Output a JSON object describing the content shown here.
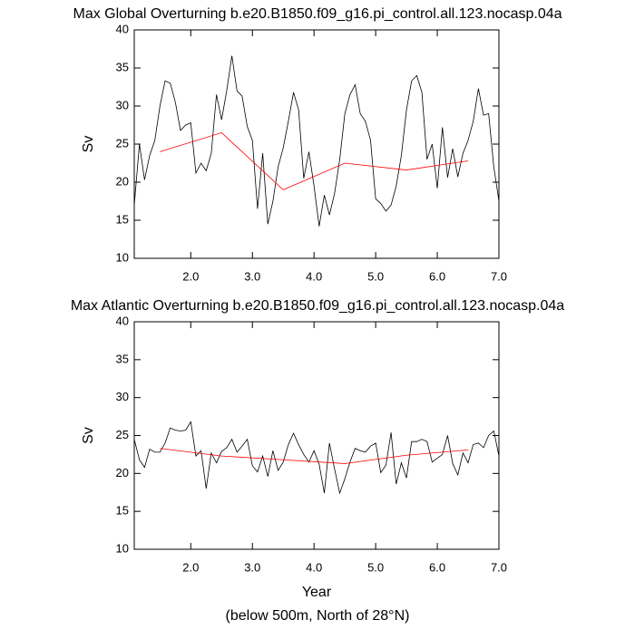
{
  "chart_data": [
    {
      "type": "line",
      "title": "Max Global Overturning b.e20.B1850.f09_g16.pi_control.all.123.nocasp.04a",
      "ylabel": "Sv",
      "xlim": [
        1.083,
        7
      ],
      "ylim": [
        10,
        40
      ],
      "xticks": [
        {
          "value": 2,
          "label": "2.0"
        },
        {
          "value": 3,
          "label": "3.0"
        },
        {
          "value": 4,
          "label": "4.0"
        },
        {
          "value": 5,
          "label": "5.0"
        },
        {
          "value": 6,
          "label": "6.0"
        },
        {
          "value": 7,
          "label": "7.0"
        }
      ],
      "yticks": [
        10,
        15,
        20,
        25,
        30,
        35,
        40
      ],
      "series": [
        {
          "color": "#000000",
          "x": [
            1.083,
            1.167,
            1.25,
            1.333,
            1.417,
            1.5,
            1.583,
            1.667,
            1.75,
            1.833,
            1.917,
            2,
            2.083,
            2.167,
            2.25,
            2.333,
            2.417,
            2.5,
            2.583,
            2.667,
            2.75,
            2.833,
            2.917,
            3,
            3.083,
            3.167,
            3.25,
            3.333,
            3.417,
            3.5,
            3.583,
            3.667,
            3.75,
            3.833,
            3.917,
            4,
            4.083,
            4.167,
            4.25,
            4.333,
            4.417,
            4.5,
            4.583,
            4.667,
            4.75,
            4.833,
            4.917,
            5,
            5.083,
            5.167,
            5.25,
            5.333,
            5.417,
            5.5,
            5.583,
            5.667,
            5.75,
            5.833,
            5.917,
            6,
            6.083,
            6.167,
            6.25,
            6.333,
            6.417,
            6.5,
            6.583,
            6.667,
            6.75,
            6.833,
            6.917,
            7
          ],
          "values": [
            17,
            25,
            20.3,
            23.5,
            25.5,
            30,
            33.3,
            33,
            30.5,
            26.8,
            27.5,
            27.8,
            21.2,
            22.5,
            21.5,
            23.8,
            31.5,
            28.2,
            32,
            36.6,
            32,
            31.3,
            27.3,
            25.5,
            16.5,
            23.8,
            14.5,
            17.5,
            22,
            24.5,
            28,
            31.8,
            29.5,
            20.5,
            24,
            19.5,
            14.2,
            18.3,
            15.7,
            18.5,
            23,
            29,
            31.5,
            32.8,
            29,
            28,
            25.5,
            17.8,
            17.2,
            16.2,
            17,
            19.5,
            23.5,
            29.5,
            33.3,
            34,
            31.8,
            23,
            25,
            19.2,
            27.2,
            20.6,
            24.4,
            20.7,
            23.8,
            25.5,
            28,
            32.3,
            28.8,
            29,
            22,
            17.5
          ]
        },
        {
          "color": "#ff0000",
          "x": [
            1.5,
            2.5,
            3.5,
            4.5,
            5.5,
            6.5
          ],
          "values": [
            24,
            26.5,
            19,
            22.5,
            21.6,
            22.8
          ]
        }
      ]
    },
    {
      "type": "line",
      "title": "Max Atlantic Overturning b.e20.B1850.f09_g16.pi_control.all.123.nocasp.04a",
      "ylabel": "Sv",
      "xlabel": "Year",
      "xlim": [
        1.083,
        7
      ],
      "ylim": [
        10,
        40
      ],
      "xticks": [
        {
          "value": 2,
          "label": "2.0"
        },
        {
          "value": 3,
          "label": "3.0"
        },
        {
          "value": 4,
          "label": "4.0"
        },
        {
          "value": 5,
          "label": "5.0"
        },
        {
          "value": 6,
          "label": "6.0"
        },
        {
          "value": 7,
          "label": "7.0"
        }
      ],
      "yticks": [
        10,
        15,
        20,
        25,
        30,
        35,
        40
      ],
      "series": [
        {
          "color": "#000000",
          "x": [
            1.083,
            1.167,
            1.25,
            1.333,
            1.417,
            1.5,
            1.583,
            1.667,
            1.75,
            1.833,
            1.917,
            2,
            2.083,
            2.167,
            2.25,
            2.333,
            2.417,
            2.5,
            2.583,
            2.667,
            2.75,
            2.833,
            2.917,
            3,
            3.083,
            3.167,
            3.25,
            3.333,
            3.417,
            3.5,
            3.583,
            3.667,
            3.75,
            3.833,
            3.917,
            4,
            4.083,
            4.167,
            4.25,
            4.333,
            4.417,
            4.5,
            4.583,
            4.667,
            4.75,
            4.833,
            4.917,
            5,
            5.083,
            5.167,
            5.25,
            5.333,
            5.417,
            5.5,
            5.583,
            5.667,
            5.75,
            5.833,
            5.917,
            6,
            6.083,
            6.167,
            6.25,
            6.333,
            6.417,
            6.5,
            6.583,
            6.667,
            6.75,
            6.833,
            6.917,
            7
          ],
          "values": [
            24.5,
            21.8,
            20.8,
            23.2,
            22.8,
            22.8,
            24,
            26,
            25.7,
            25.6,
            25.7,
            26.8,
            22.3,
            23,
            18,
            22.7,
            21.4,
            22.9,
            23.4,
            24.5,
            22.8,
            23.6,
            24.5,
            21,
            20.2,
            22.3,
            19.6,
            23,
            20.4,
            21.5,
            23.8,
            25.3,
            23.8,
            22.5,
            21.5,
            23,
            21.2,
            17.4,
            24,
            20.6,
            17.4,
            19.3,
            21.5,
            23.3,
            23,
            22.8,
            23.6,
            24,
            20.1,
            21.1,
            25.4,
            18.6,
            21.4,
            19.4,
            24.2,
            24.2,
            24.5,
            24.2,
            21.5,
            22,
            22.5,
            25,
            21.3,
            19.8,
            22.7,
            21.4,
            23.8,
            24,
            23.4,
            25,
            25.6,
            22.3
          ]
        },
        {
          "color": "#ff0000",
          "x": [
            1.5,
            2.5,
            3.5,
            4.5,
            5.5,
            6.5
          ],
          "values": [
            23.3,
            22.3,
            21.8,
            21.3,
            22.4,
            23.1
          ]
        }
      ]
    }
  ],
  "footnote": "(below 500m, North of 28°N)"
}
